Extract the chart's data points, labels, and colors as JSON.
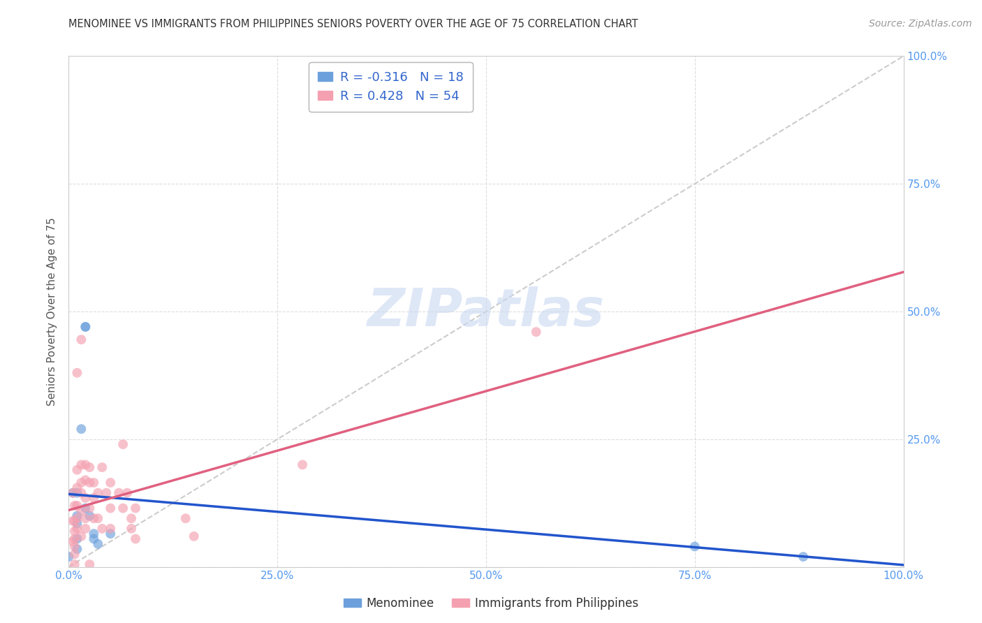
{
  "title": "MENOMINEE VS IMMIGRANTS FROM PHILIPPINES SENIORS POVERTY OVER THE AGE OF 75 CORRELATION CHART",
  "source": "Source: ZipAtlas.com",
  "ylabel": "Seniors Poverty Over the Age of 75",
  "xlim": [
    0.0,
    1.0
  ],
  "ylim": [
    0.0,
    1.0
  ],
  "xticks": [
    0.0,
    0.25,
    0.5,
    0.75,
    1.0
  ],
  "yticks": [
    0.0,
    0.25,
    0.5,
    0.75,
    1.0
  ],
  "xticklabels": [
    "0.0%",
    "25.0%",
    "50.0%",
    "75.0%",
    "100.0%"
  ],
  "yticklabels": [
    "",
    "25.0%",
    "50.0%",
    "75.0%",
    "100.0%"
  ],
  "menominee_color": "#6ca0dc",
  "philippines_color": "#f4a0b0",
  "menominee_line_color": "#2255cc",
  "philippines_line_color": "#e06080",
  "diagonal_color": "#cccccc",
  "grid_color": "#dddddd",
  "tick_label_color": "#5599ee",
  "ylabel_color": "#555555",
  "title_color": "#333333",
  "source_color": "#999999",
  "watermark_color": "#c8d8f0",
  "menominee_R": -0.316,
  "menominee_N": 18,
  "philippines_R": 0.428,
  "philippines_N": 54,
  "menominee_x": [
    0.005,
    0.01,
    0.01,
    0.01,
    0.01,
    0.01,
    0.015,
    0.02,
    0.02,
    0.02,
    0.025,
    0.03,
    0.03,
    0.035,
    0.05,
    0.0,
    0.75,
    0.88
  ],
  "menominee_y": [
    0.145,
    0.145,
    0.1,
    0.085,
    0.055,
    0.035,
    0.27,
    0.47,
    0.47,
    0.115,
    0.1,
    0.065,
    0.055,
    0.045,
    0.065,
    0.02,
    0.04,
    0.02
  ],
  "philippines_x": [
    0.005,
    0.005,
    0.005,
    0.007,
    0.007,
    0.007,
    0.007,
    0.007,
    0.007,
    0.007,
    0.01,
    0.01,
    0.01,
    0.01,
    0.01,
    0.01,
    0.015,
    0.015,
    0.015,
    0.015,
    0.015,
    0.015,
    0.02,
    0.02,
    0.02,
    0.02,
    0.02,
    0.025,
    0.025,
    0.025,
    0.025,
    0.03,
    0.03,
    0.03,
    0.035,
    0.035,
    0.04,
    0.04,
    0.045,
    0.05,
    0.05,
    0.05,
    0.06,
    0.065,
    0.065,
    0.07,
    0.075,
    0.075,
    0.08,
    0.08,
    0.14,
    0.15,
    0.28,
    0.56
  ],
  "philippines_y": [
    0.145,
    0.09,
    0.05,
    0.12,
    0.09,
    0.07,
    0.055,
    0.04,
    0.025,
    0.005,
    0.38,
    0.19,
    0.155,
    0.12,
    0.095,
    0.075,
    0.445,
    0.2,
    0.165,
    0.145,
    0.11,
    0.06,
    0.2,
    0.17,
    0.135,
    0.095,
    0.075,
    0.195,
    0.165,
    0.115,
    0.005,
    0.165,
    0.135,
    0.095,
    0.145,
    0.095,
    0.195,
    0.075,
    0.145,
    0.165,
    0.115,
    0.075,
    0.145,
    0.24,
    0.115,
    0.145,
    0.095,
    0.075,
    0.115,
    0.055,
    0.095,
    0.06,
    0.2,
    0.46
  ]
}
